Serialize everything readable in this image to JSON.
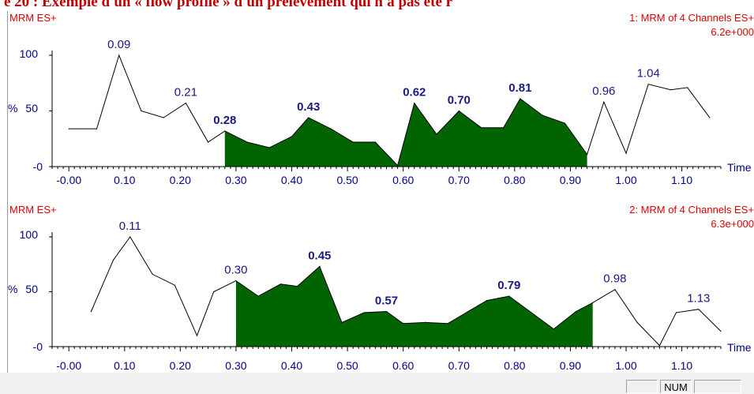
{
  "page": {
    "heading": "e 20 : Exemple d'un « flow profile » d'un prélèvement qui n'a pas été r"
  },
  "statusbar": {
    "num_label": "NUM"
  },
  "colors": {
    "trace": "#000000",
    "fill": "#006400",
    "axis_text": "#00008b",
    "label_red": "#e00000",
    "peak_label": "#1a1a80"
  },
  "chart_data": [
    {
      "type": "area",
      "panel_label": "MRM ES+",
      "trace_title": "1: MRM of 4 Channels ES+",
      "intensity": "6.2e+000",
      "xlabel": "Time",
      "ylabel": "%",
      "xlim": [
        -0.03,
        1.17
      ],
      "ylim": [
        0,
        100
      ],
      "xticks": [
        "-0.00",
        "0.10",
        "0.20",
        "0.30",
        "0.40",
        "0.50",
        "0.60",
        "0.70",
        "0.80",
        "0.90",
        "1.00",
        "1.10"
      ],
      "yticks": [
        "100",
        "50",
        "-0"
      ],
      "x": [
        0.0,
        0.05,
        0.09,
        0.13,
        0.17,
        0.21,
        0.25,
        0.28,
        0.32,
        0.36,
        0.4,
        0.43,
        0.47,
        0.51,
        0.55,
        0.59,
        0.62,
        0.66,
        0.7,
        0.74,
        0.78,
        0.81,
        0.85,
        0.89,
        0.93,
        0.96,
        1.0,
        1.04,
        1.08,
        1.11,
        1.15
      ],
      "y": [
        34,
        34,
        100,
        50,
        44,
        57,
        22,
        32,
        22,
        17,
        27,
        44,
        34,
        22,
        22,
        1,
        57,
        29,
        50,
        35,
        35,
        61,
        46,
        39,
        11,
        58,
        12,
        74,
        69,
        71,
        44
      ],
      "fill_range": [
        0.28,
        0.93
      ],
      "peak_labels": [
        {
          "x": 0.09,
          "text": "0.09",
          "bold": false
        },
        {
          "x": 0.21,
          "text": "0.21",
          "bold": false
        },
        {
          "x": 0.28,
          "text": "0.28",
          "bold": true
        },
        {
          "x": 0.43,
          "text": "0.43",
          "bold": true
        },
        {
          "x": 0.62,
          "text": "0.62",
          "bold": true
        },
        {
          "x": 0.7,
          "text": "0.70",
          "bold": true
        },
        {
          "x": 0.81,
          "text": "0.81",
          "bold": true
        },
        {
          "x": 0.96,
          "text": "0.96",
          "bold": false
        },
        {
          "x": 1.04,
          "text": "1.04",
          "bold": false
        }
      ]
    },
    {
      "type": "area",
      "panel_label": "MRM ES+",
      "trace_title": "2: MRM of 4 Channels ES+",
      "intensity": "6.3e+000",
      "xlabel": "Time",
      "ylabel": "%",
      "xlim": [
        -0.03,
        1.17
      ],
      "ylim": [
        0,
        100
      ],
      "xticks": [
        "-0.00",
        "0.10",
        "0.20",
        "0.30",
        "0.40",
        "0.50",
        "0.60",
        "0.70",
        "0.80",
        "0.90",
        "1.00",
        "1.10"
      ],
      "yticks": [
        "100",
        "50",
        "-0"
      ],
      "x": [
        0.04,
        0.08,
        0.11,
        0.15,
        0.19,
        0.23,
        0.26,
        0.3,
        0.34,
        0.38,
        0.41,
        0.45,
        0.49,
        0.53,
        0.57,
        0.6,
        0.64,
        0.68,
        0.72,
        0.75,
        0.79,
        0.83,
        0.87,
        0.91,
        0.94,
        0.98,
        1.02,
        1.06,
        1.09,
        1.13,
        1.17
      ],
      "y": [
        32,
        79,
        100,
        66,
        56,
        10,
        50,
        60,
        46,
        57,
        55,
        73,
        22,
        31,
        32,
        21,
        22,
        21,
        33,
        42,
        46,
        31,
        16,
        32,
        40,
        52,
        22,
        1,
        31,
        34,
        14
      ],
      "fill_range": [
        0.3,
        0.94
      ],
      "peak_labels": [
        {
          "x": 0.11,
          "text": "0.11",
          "bold": false
        },
        {
          "x": 0.3,
          "text": "0.30",
          "bold": false
        },
        {
          "x": 0.45,
          "text": "0.45",
          "bold": true
        },
        {
          "x": 0.57,
          "text": "0.57",
          "bold": true
        },
        {
          "x": 0.79,
          "text": "0.79",
          "bold": true
        },
        {
          "x": 0.98,
          "text": "0.98",
          "bold": false
        },
        {
          "x": 1.13,
          "text": "1.13",
          "bold": false
        }
      ]
    }
  ]
}
